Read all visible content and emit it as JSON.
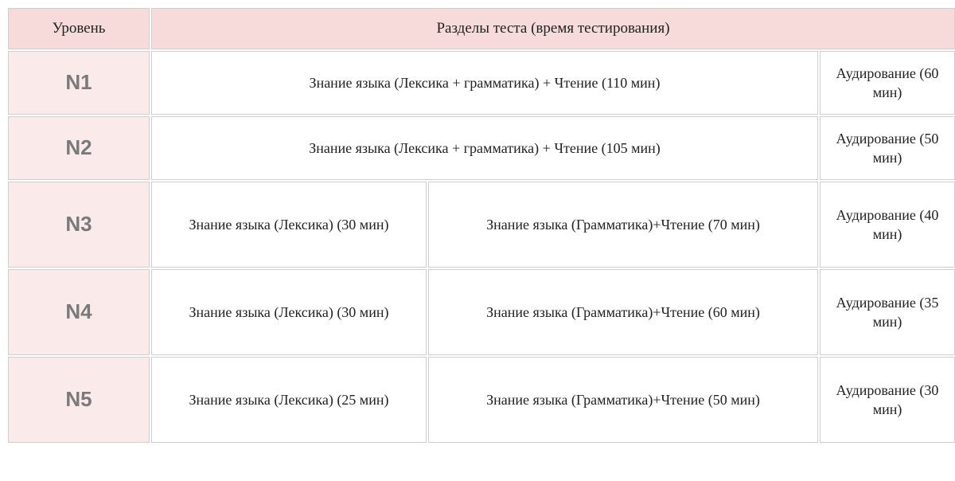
{
  "table": {
    "header": {
      "level": "Уровень",
      "sections": "Разделы теста (время тестирования)"
    },
    "rows": [
      {
        "level": "N1",
        "wide": "Знание языка (Лексика + грамматика) + Чтение (110 мин)",
        "listen": "Аудирование (60 мин)",
        "layout": "wide",
        "height": "med"
      },
      {
        "level": "N2",
        "wide": "Знание языка (Лексика + грамматика) + Чтение (105 мин)",
        "listen": "Аудирование (50 мин)",
        "layout": "wide",
        "height": "med"
      },
      {
        "level": "N3",
        "a": "Знание языка (Лексика) (30 мин)",
        "b": "Знание языка (Грамматика)+Чтение (70 мин)",
        "listen": "Аудирование (40 мин)",
        "layout": "split",
        "height": "tall"
      },
      {
        "level": "N4",
        "a": "Знание языка (Лексика) (30 мин)",
        "b": "Знание языка (Грамматика)+Чтение (60 мин)",
        "listen": "Аудирование (35 мин)",
        "layout": "split",
        "height": "tall"
      },
      {
        "level": "N5",
        "a": "Знание языка (Лексика) (25 мин)",
        "b": "Знание языка (Грамматика)+Чтение (50 мин)",
        "listen": "Аудирование (30 мин)",
        "layout": "split",
        "height": "tall"
      }
    ],
    "colors": {
      "header_bg": "#f7dada",
      "level_bg": "#faeaea",
      "cell_bg": "#ffffff",
      "border": "#cfcfcf",
      "level_text": "#7a7a7a",
      "text": "#222222"
    },
    "fonts": {
      "body": "Georgia, 'Times New Roman', serif",
      "level": "Arial, Helvetica, sans-serif",
      "header_size_pt": 14,
      "body_size_pt": 13.5,
      "level_size_pt": 20
    }
  }
}
